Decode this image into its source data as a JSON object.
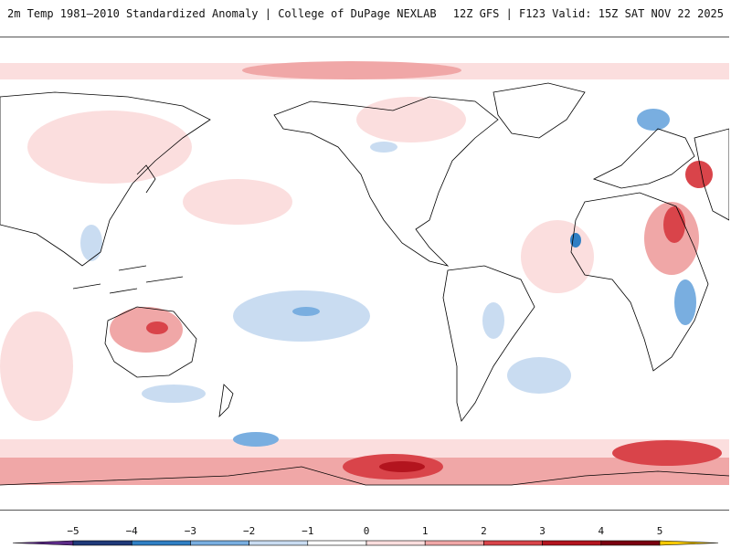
{
  "header": {
    "title_left": "2m Temp 1981–2010 Standardized Anomaly | College of DuPage NEXLAB",
    "title_right": "12Z GFS | F123 Valid: 15Z SAT NOV 22 2025"
  },
  "map": {
    "projection": "equirectangular-pacific-centered",
    "land_color": "#ffffff",
    "border_color": "#000000"
  },
  "legend": {
    "ticks": [
      "−5",
      "−4",
      "−3",
      "−2",
      "−1",
      "0",
      "1",
      "2",
      "3",
      "4",
      "5"
    ],
    "colors": [
      "#5b2a86",
      "#1f3a7a",
      "#2f7fc4",
      "#79aee0",
      "#c9dcf1",
      "#ffffff",
      "#fbdede",
      "#f0a7a7",
      "#d9444a",
      "#b3141e",
      "#7a0010",
      "#f5c800"
    ]
  }
}
